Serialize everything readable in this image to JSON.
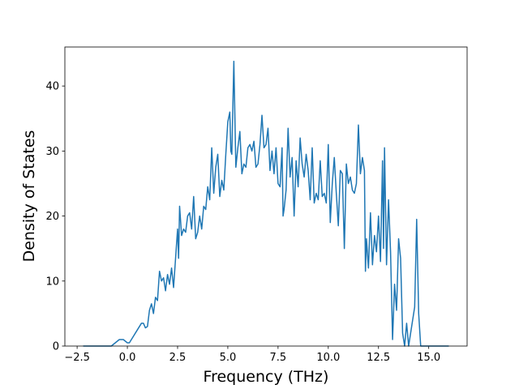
{
  "chart_data": {
    "type": "line",
    "x_label": "Frequency (THz)",
    "y_label": "Density of States",
    "xlim": [
      -3.11,
      16.91
    ],
    "ylim": [
      0,
      46
    ],
    "xticks": [
      {
        "value": -2.5,
        "label": "−2.5"
      },
      {
        "value": 0,
        "label": "0.0"
      },
      {
        "value": 2.5,
        "label": "2.5"
      },
      {
        "value": 5,
        "label": "5.0"
      },
      {
        "value": 7.5,
        "label": "7.5"
      },
      {
        "value": 10,
        "label": "10.0"
      },
      {
        "value": 12.5,
        "label": "12.5"
      },
      {
        "value": 15,
        "label": "15.0"
      }
    ],
    "yticks": [
      0,
      10,
      20,
      30,
      40
    ],
    "grid": false,
    "series": [
      {
        "color": "#1f77b4",
        "x": [
          -2.2,
          -0.8,
          -0.6,
          -0.4,
          -0.2,
          0,
          0.1,
          0.3,
          0.5,
          0.7,
          0.8,
          0.9,
          1.0,
          1.1,
          1.2,
          1.3,
          1.4,
          1.5,
          1.6,
          1.7,
          1.8,
          1.9,
          2.0,
          2.1,
          2.2,
          2.3,
          2.4,
          2.5,
          2.55,
          2.6,
          2.7,
          2.8,
          2.9,
          3.0,
          3.1,
          3.2,
          3.3,
          3.4,
          3.5,
          3.6,
          3.7,
          3.8,
          3.9,
          4.0,
          4.1,
          4.2,
          4.3,
          4.4,
          4.5,
          4.6,
          4.7,
          4.8,
          4.9,
          5.0,
          5.1,
          5.15,
          5.2,
          5.3,
          5.4,
          5.5,
          5.6,
          5.7,
          5.8,
          5.9,
          6.0,
          6.1,
          6.2,
          6.3,
          6.4,
          6.5,
          6.6,
          6.7,
          6.8,
          6.9,
          7.0,
          7.1,
          7.2,
          7.3,
          7.4,
          7.5,
          7.6,
          7.7,
          7.75,
          7.8,
          7.9,
          8.0,
          8.1,
          8.2,
          8.3,
          8.4,
          8.5,
          8.6,
          8.7,
          8.8,
          8.9,
          9.0,
          9.1,
          9.2,
          9.3,
          9.4,
          9.5,
          9.6,
          9.7,
          9.8,
          9.9,
          10.0,
          10.1,
          10.2,
          10.3,
          10.4,
          10.5,
          10.6,
          10.7,
          10.8,
          10.9,
          11.0,
          11.1,
          11.2,
          11.3,
          11.4,
          11.5,
          11.6,
          11.7,
          11.8,
          11.85,
          11.9,
          12.0,
          12.1,
          12.2,
          12.3,
          12.4,
          12.5,
          12.6,
          12.7,
          12.75,
          12.8,
          12.9,
          13.0,
          13.1,
          13.2,
          13.3,
          13.4,
          13.5,
          13.6,
          13.7,
          13.8,
          13.9,
          14.0,
          14.2,
          14.3,
          14.4,
          14.5,
          14.6,
          16.0
        ],
        "values": [
          0,
          0,
          0.5,
          1.0,
          1.0,
          0.5,
          0.5,
          1.5,
          2.5,
          3.5,
          3.5,
          2.8,
          3.0,
          5.5,
          6.5,
          5.0,
          7.5,
          7.0,
          11.5,
          10.0,
          10.5,
          8.5,
          11.0,
          9.5,
          12.0,
          9.0,
          13.5,
          18.0,
          13.5,
          21.5,
          17.0,
          18.0,
          17.5,
          20.0,
          20.5,
          18.0,
          23.0,
          16.5,
          17.5,
          20.0,
          18.0,
          21.5,
          21.0,
          24.5,
          22.5,
          30.5,
          23.5,
          27.5,
          29.5,
          23.0,
          25.5,
          24.0,
          29.5,
          34.5,
          36.0,
          30.0,
          29.5,
          43.8,
          27.5,
          30.5,
          33.0,
          26.5,
          28.0,
          27.5,
          30.5,
          31.0,
          30.0,
          31.5,
          27.5,
          28.0,
          31.0,
          35.5,
          30.5,
          31.0,
          33.5,
          27.0,
          30.0,
          26.5,
          30.5,
          25.0,
          24.5,
          30.5,
          20.0,
          21.0,
          24.0,
          33.5,
          26.0,
          29.0,
          20.0,
          28.5,
          24.5,
          32.0,
          28.0,
          26.0,
          29.5,
          27.0,
          22.5,
          30.5,
          22.0,
          23.5,
          22.5,
          28.5,
          23.0,
          23.5,
          22.0,
          31.0,
          19.0,
          25.0,
          29.0,
          23.5,
          18.5,
          27.0,
          26.5,
          15.0,
          28.0,
          25.0,
          26.0,
          24.0,
          23.5,
          25.0,
          34.0,
          26.5,
          29.0,
          27.0,
          11.5,
          16.5,
          12.0,
          20.5,
          12.5,
          17.0,
          14.5,
          20.0,
          13.0,
          28.5,
          15.0,
          30.5,
          12.5,
          22.5,
          14.5,
          1.0,
          9.5,
          5.5,
          16.5,
          13.5,
          2.0,
          0,
          3.5,
          0,
          4.0,
          6.0,
          19.5,
          5.0,
          0,
          0
        ]
      }
    ]
  }
}
